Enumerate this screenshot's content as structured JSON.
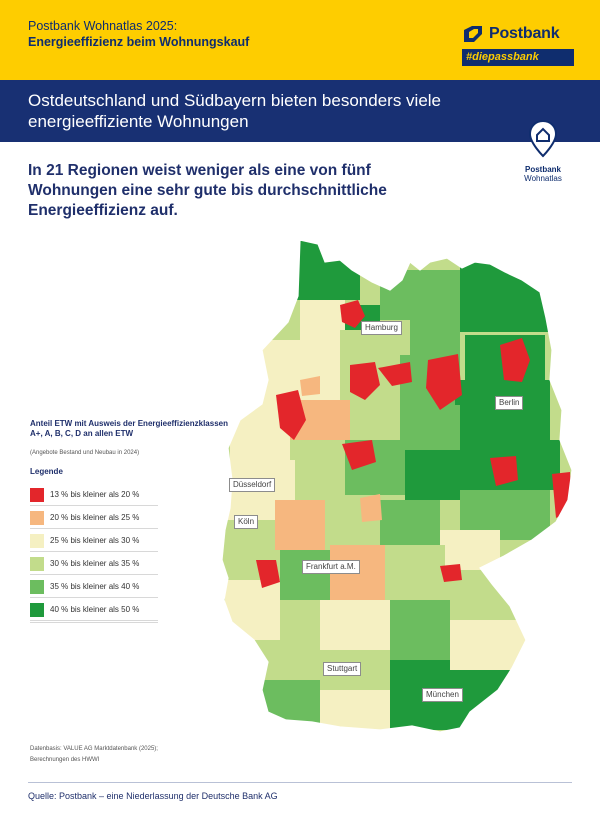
{
  "header": {
    "line1": "Postbank Wohnatlas 2025:",
    "line2": "Energieeffizienz beim Wohnungskauf",
    "brand_name": "Postbank",
    "brand_tag": "#diepassbank"
  },
  "banner": {
    "title": "Ostdeutschland und Südbayern bieten besonders viele energieeffiziente Wohnungen"
  },
  "wohnatlas_badge": {
    "line1": "Postbank",
    "line2": "Wohnatlas",
    "icon": "house-pin-icon"
  },
  "subtitle": "In 21 Regionen weist weniger als eine von fünf Wohnungen eine sehr gute bis durchschnittliche Energieeffizienz auf.",
  "legend": {
    "title": "Anteil ETW mit Ausweis der Energieeffizienzklassen A+, A, B, C, D an allen ETW",
    "note": "(Angebote Bestand und Neubau in 2024)",
    "heading": "Legende",
    "items": [
      {
        "label": "13 % bis kleiner als 20 %",
        "color": "#e3262b"
      },
      {
        "label": "20 % bis kleiner als 25 %",
        "color": "#f6b77f"
      },
      {
        "label": "25 % bis kleiner als 30 %",
        "color": "#f5f0c2"
      },
      {
        "label": "30 % bis kleiner als 35 %",
        "color": "#c2dc8b"
      },
      {
        "label": "35 % bis kleiner als 40 %",
        "color": "#6cbd5f"
      },
      {
        "label": "40 % bis kleiner als 50 %",
        "color": "#1f9a3c"
      }
    ]
  },
  "cities": [
    "Hamburg",
    "Berlin",
    "Düsseldorf",
    "Köln",
    "Frankfurt a.M.",
    "Stuttgart",
    "München"
  ],
  "datenbasis": {
    "line1": "Datenbasis: VALUE AG Marktdatenbank (2025);",
    "line2": "Berechnungen des HWWI"
  },
  "footer": {
    "source": "Quelle: Postbank – eine Niederlassung der Deutsche Bank AG"
  }
}
